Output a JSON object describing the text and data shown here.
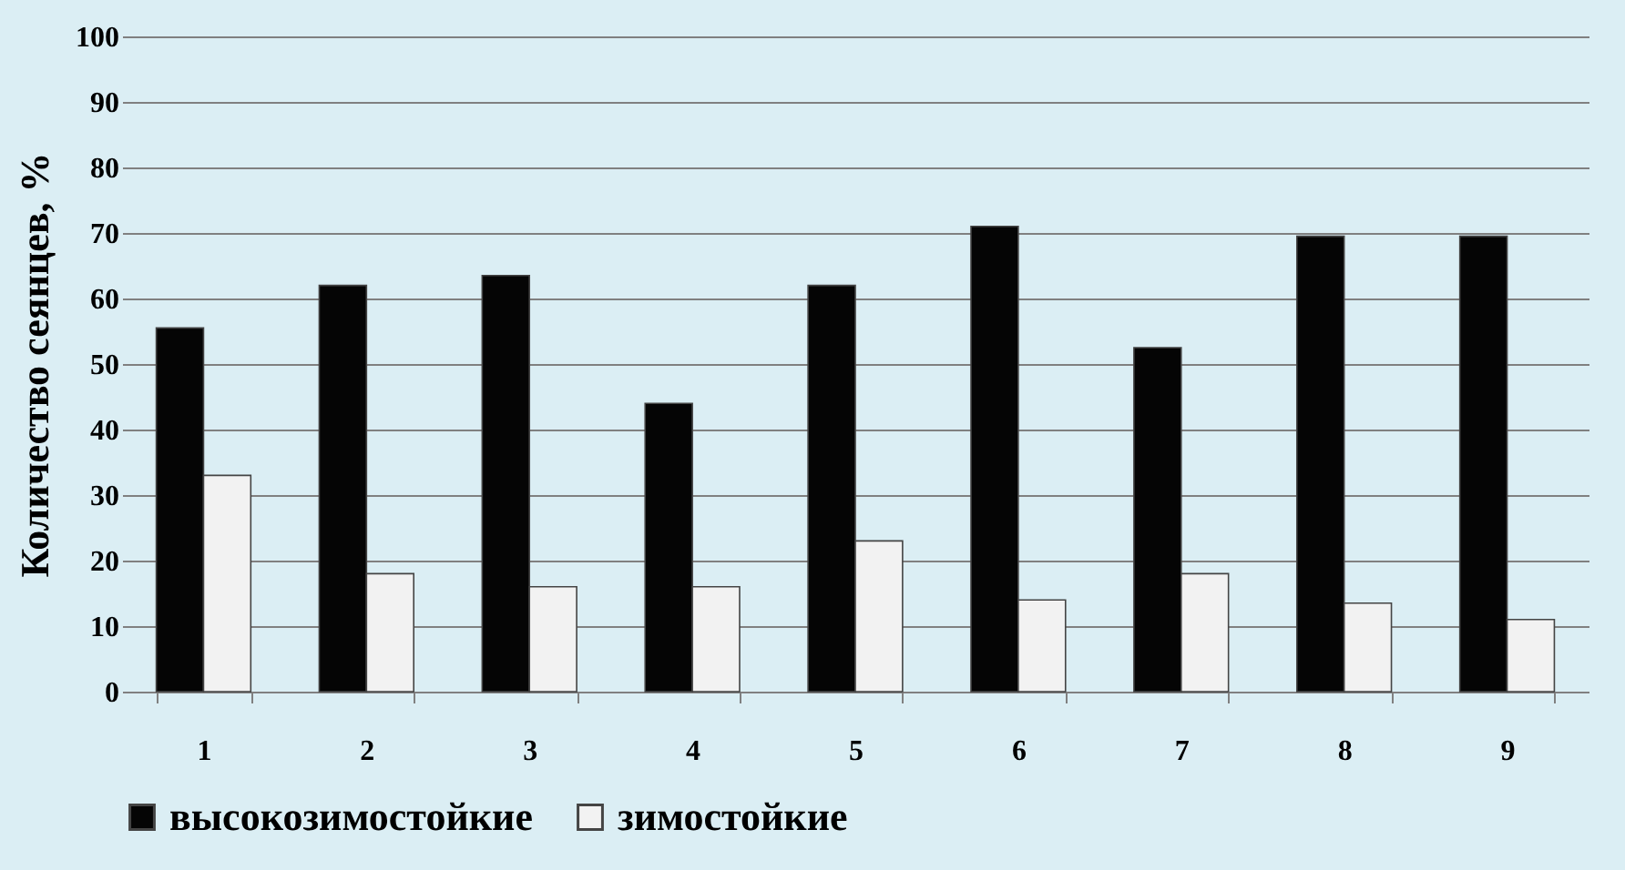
{
  "chart_data": {
    "type": "bar",
    "ylabel": "Количество сеянцев, %",
    "categories": [
      "1",
      "2",
      "3",
      "4",
      "5",
      "6",
      "7",
      "8",
      "9"
    ],
    "series": [
      {
        "name": "высокозимостойкие",
        "color": "#050505",
        "values": [
          55.5,
          62,
          63.5,
          44,
          62,
          71,
          52.5,
          69.5,
          69.5
        ]
      },
      {
        "name": "зимостойкие",
        "color": "#f2f2f2",
        "values": [
          33,
          18,
          16,
          16,
          23,
          14,
          18,
          13.5,
          11
        ]
      }
    ],
    "ylim": [
      0,
      100
    ],
    "yticks": [
      0,
      10,
      20,
      30,
      40,
      50,
      60,
      70,
      80,
      90,
      100
    ],
    "grid": "y",
    "legend": "bottom"
  }
}
